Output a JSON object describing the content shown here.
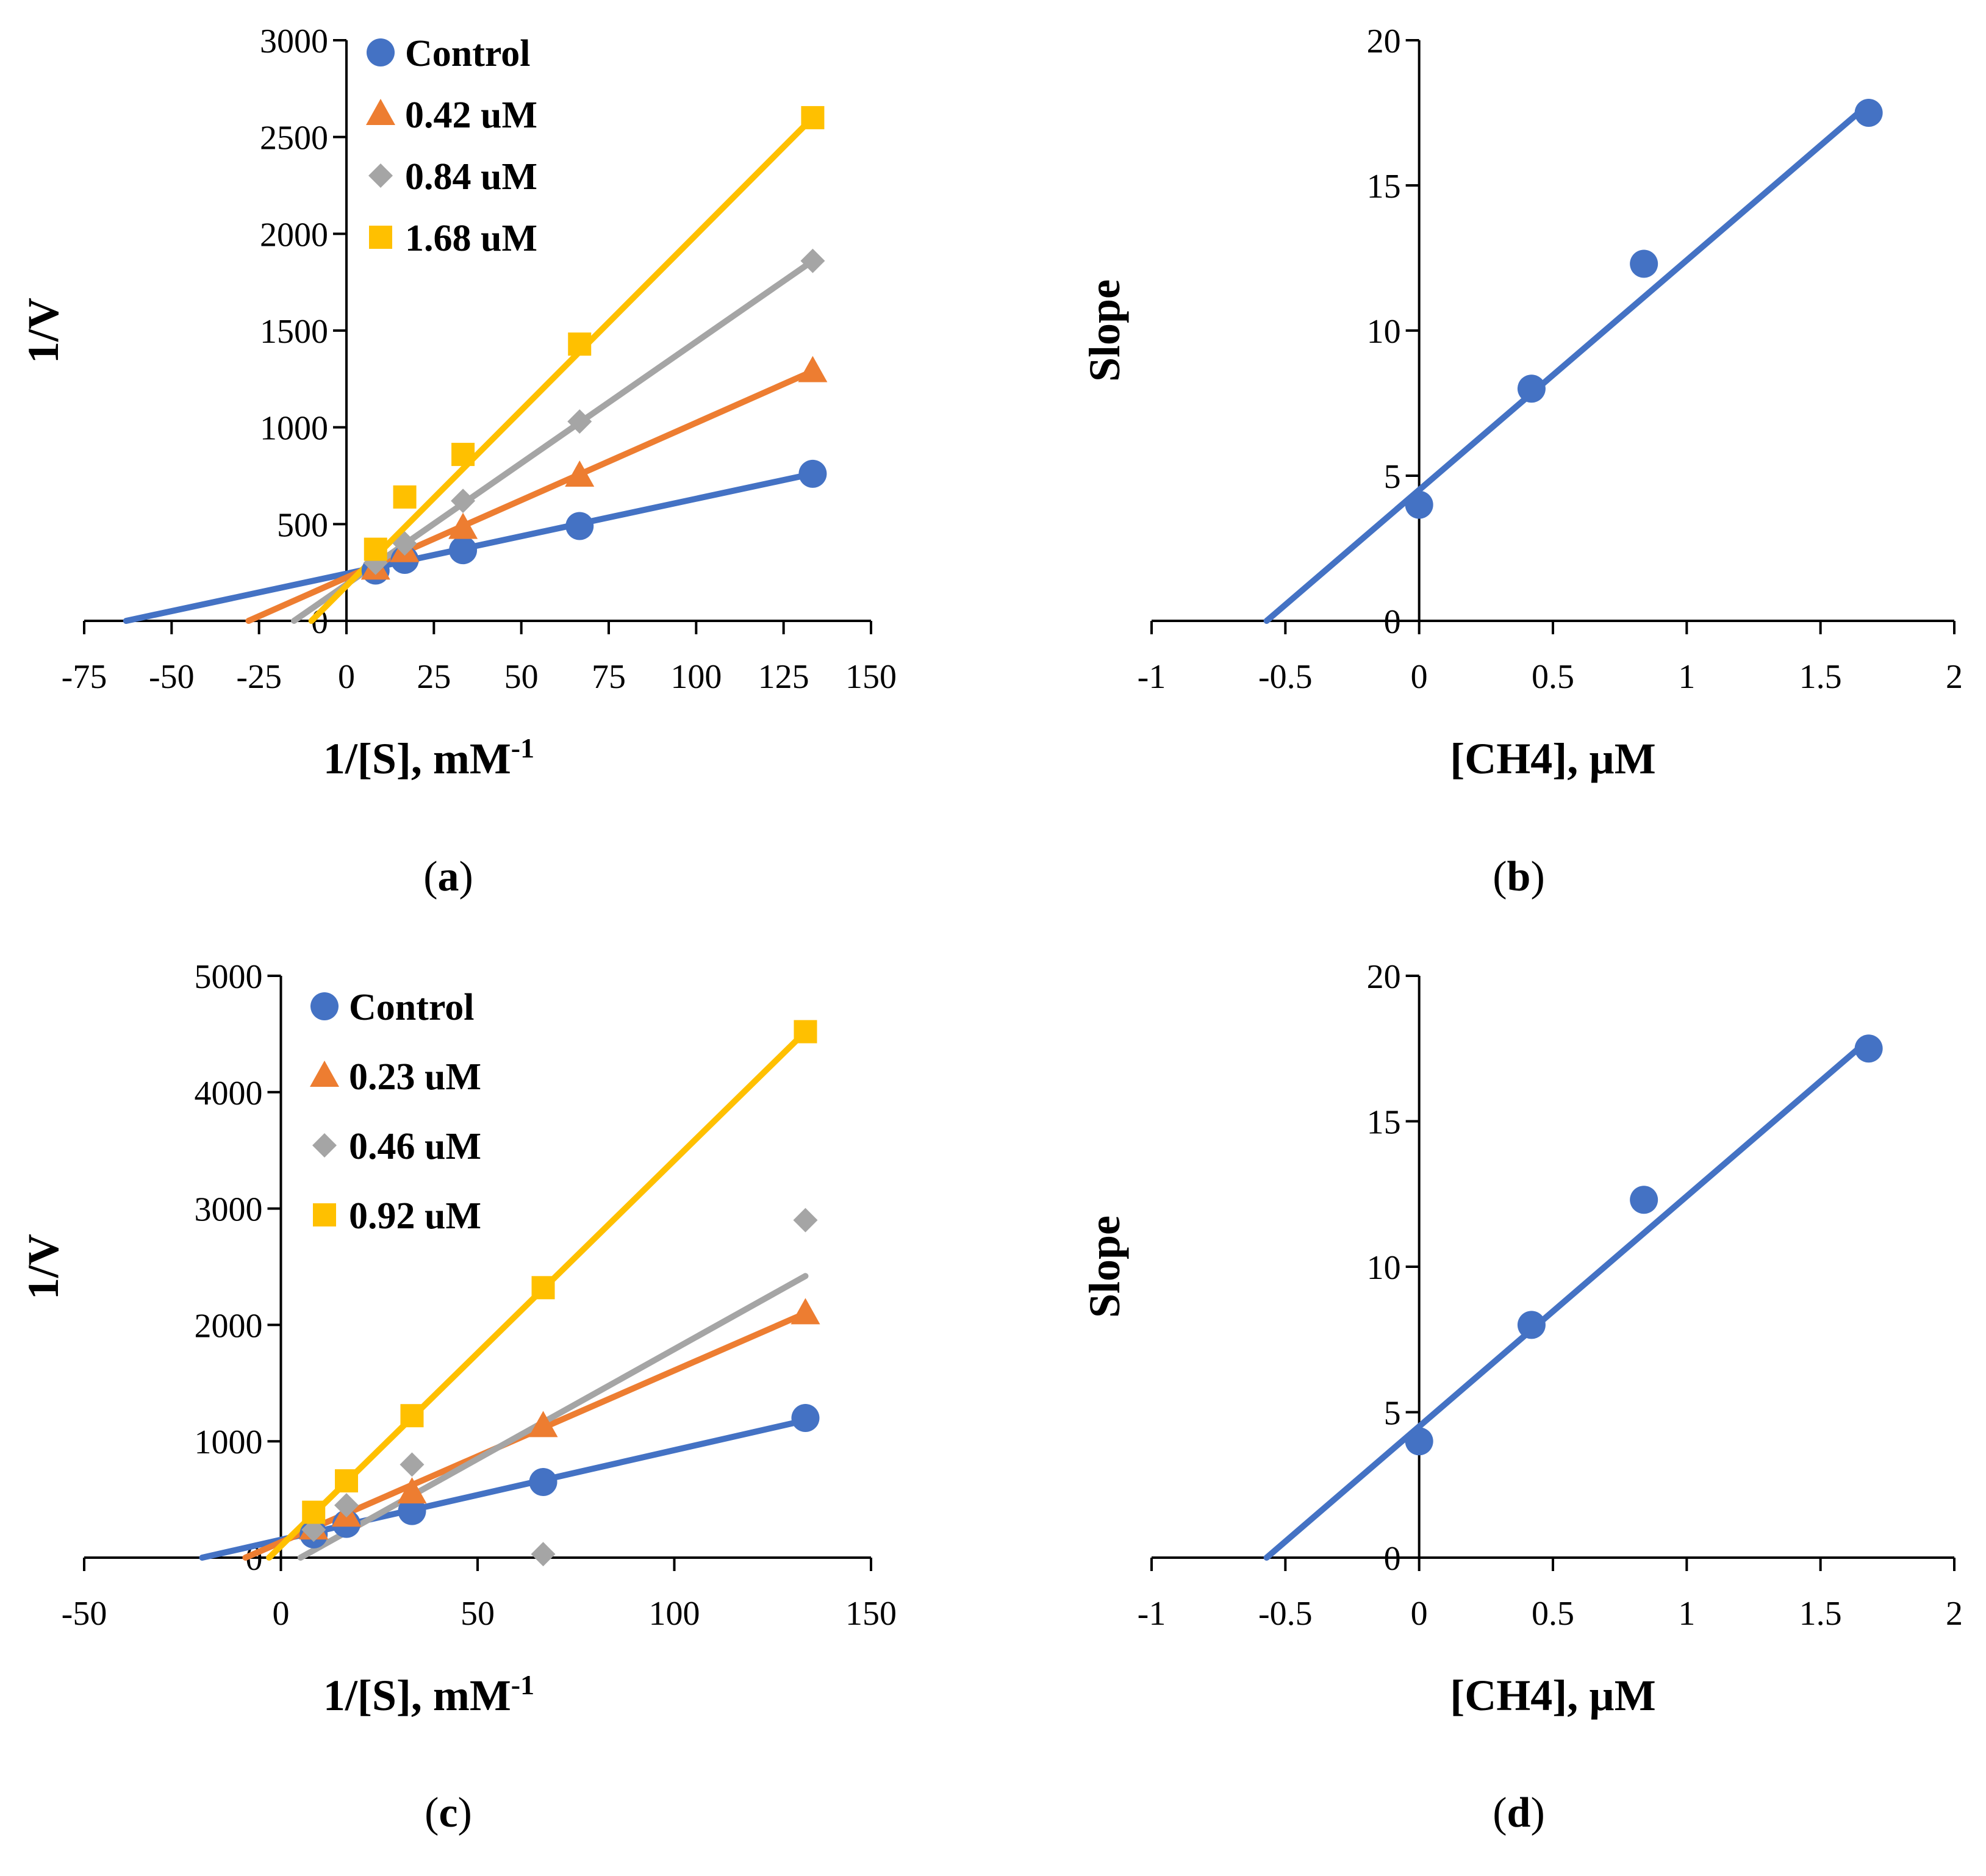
{
  "chart_data": [
    {
      "id": "a",
      "type": "line",
      "caption": "a",
      "xlabel": "1/[S], mM",
      "xlabel_sup": "-1",
      "ylabel": "1/V",
      "xlim": [
        -75,
        150
      ],
      "ylim": [
        0,
        3000
      ],
      "xticks": [
        -75,
        -50,
        -25,
        0,
        25,
        50,
        75,
        100,
        125,
        150
      ],
      "yticks": [
        0,
        500,
        1000,
        1500,
        2000,
        2500,
        3000
      ],
      "legend_position": "top-left",
      "series": [
        {
          "name": "Control",
          "marker": "circle",
          "color": "#4472C4",
          "x": [
            8.33,
            16.67,
            33.33,
            66.67,
            133.33
          ],
          "y": [
            260,
            315,
            365,
            490,
            760
          ],
          "fit": {
            "x": [
              -63,
              133.33
            ],
            "y": [
              0,
              760
            ]
          }
        },
        {
          "name": "0.42 uM",
          "marker": "triangle",
          "color": "#ED7D31",
          "x": [
            8.33,
            16.67,
            33.33,
            66.67,
            133.33
          ],
          "y": [
            270,
            360,
            480,
            750,
            1290
          ],
          "fit": {
            "x": [
              -28,
              133.33
            ],
            "y": [
              0,
              1290
            ]
          }
        },
        {
          "name": "0.84 uM",
          "marker": "diamond",
          "color": "#A5A5A5",
          "x": [
            8.33,
            16.67,
            33.33,
            66.67,
            133.33
          ],
          "y": [
            300,
            400,
            620,
            1030,
            1860
          ],
          "fit": {
            "x": [
              -15,
              133.33
            ],
            "y": [
              0,
              1860
            ]
          }
        },
        {
          "name": "1.68 uM",
          "marker": "square",
          "color": "#FFC000",
          "x": [
            8.33,
            16.67,
            33.33,
            66.67,
            133.33
          ],
          "y": [
            370,
            640,
            860,
            1430,
            2600
          ],
          "fit": {
            "x": [
              -10,
              133.33
            ],
            "y": [
              0,
              2600
            ]
          }
        }
      ]
    },
    {
      "id": "b",
      "type": "scatter",
      "caption": "b",
      "xlabel": "[CH4], µM",
      "xlabel_sup": "",
      "ylabel": "Slope",
      "xlim": [
        -1,
        2
      ],
      "ylim": [
        0,
        20
      ],
      "xticks": [
        -1,
        -0.5,
        0,
        0.5,
        1,
        1.5,
        2
      ],
      "yticks": [
        0,
        5,
        10,
        15,
        20
      ],
      "series": [
        {
          "name": "Slope",
          "marker": "circle",
          "color": "#4472C4",
          "x": [
            0,
            0.42,
            0.84,
            1.68
          ],
          "y": [
            4.0,
            8.0,
            12.3,
            17.5
          ],
          "fit": {
            "x": [
              -0.57,
              1.68
            ],
            "y": [
              0,
              17.8
            ]
          }
        }
      ]
    },
    {
      "id": "c",
      "type": "line",
      "caption": "c",
      "xlabel": "1/[S], mM",
      "xlabel_sup": "-1",
      "ylabel": "1/V",
      "xlim": [
        -50,
        150
      ],
      "ylim": [
        0,
        5000
      ],
      "xticks": [
        -50,
        0,
        50,
        100,
        150
      ],
      "yticks": [
        0,
        1000,
        2000,
        3000,
        4000,
        5000
      ],
      "legend_position": "top-left",
      "series": [
        {
          "name": "Control",
          "marker": "circle",
          "color": "#4472C4",
          "x": [
            8.33,
            16.67,
            33.33,
            66.67,
            133.33
          ],
          "y": [
            200,
            290,
            400,
            650,
            1200
          ],
          "fit": {
            "x": [
              -20,
              133.33
            ],
            "y": [
              0,
              1180
            ]
          }
        },
        {
          "name": "0.23 uM",
          "marker": "triangle",
          "color": "#ED7D31",
          "x": [
            8.33,
            16.67,
            33.33,
            66.67,
            133.33
          ],
          "y": [
            250,
            360,
            560,
            1130,
            2100
          ],
          "fit": {
            "x": [
              -9,
              133.33
            ],
            "y": [
              0,
              2100
            ]
          }
        },
        {
          "name": "0.46 uM",
          "marker": "diamond",
          "color": "#A5A5A5",
          "x": [
            8.33,
            16.67,
            33.33,
            66.67,
            133.33
          ],
          "y": [
            240,
            450,
            800,
            30,
            2900
          ],
          "fit": {
            "x": [
              5,
              133.33
            ],
            "y": [
              0,
              2420
            ]
          }
        },
        {
          "name": "0.92 uM",
          "marker": "square",
          "color": "#FFC000",
          "x": [
            8.33,
            16.67,
            33.33,
            66.67,
            133.33
          ],
          "y": [
            390,
            660,
            1220,
            2320,
            4520
          ],
          "fit": {
            "x": [
              -3,
              133.33
            ],
            "y": [
              0,
              4520
            ]
          }
        }
      ]
    },
    {
      "id": "d",
      "type": "scatter",
      "caption": "d",
      "xlabel": "[CH4], µM",
      "xlabel_sup": "",
      "ylabel": "Slope",
      "xlim": [
        -1,
        2
      ],
      "ylim": [
        0,
        20
      ],
      "xticks": [
        -1,
        -0.5,
        0,
        0.5,
        1,
        1.5,
        2
      ],
      "yticks": [
        0,
        5,
        10,
        15,
        20
      ],
      "series": [
        {
          "name": "Slope",
          "marker": "circle",
          "color": "#4472C4",
          "x": [
            0,
            0.42,
            0.84,
            1.68
          ],
          "y": [
            4.0,
            8.0,
            12.3,
            17.5
          ],
          "fit": {
            "x": [
              -0.57,
              1.68
            ],
            "y": [
              0,
              17.8
            ]
          }
        }
      ]
    }
  ]
}
